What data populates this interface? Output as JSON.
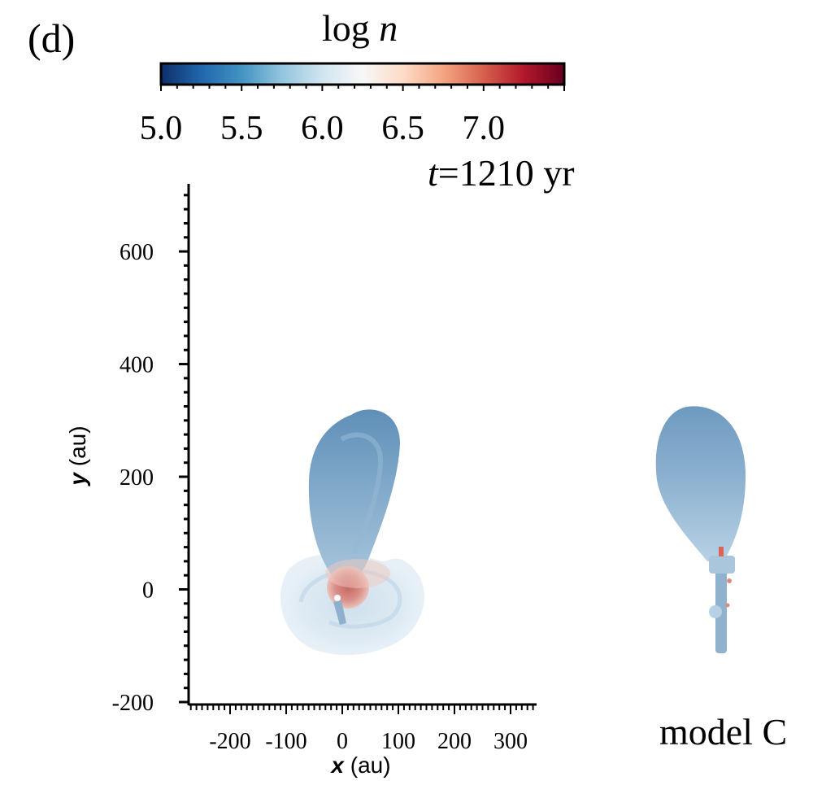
{
  "panel_label": "(d)",
  "colorbar": {
    "title_prefix": "log ",
    "title_var": "n",
    "min": 5.0,
    "max": 7.5,
    "tick_labels": [
      "5.0",
      "5.5",
      "6.0",
      "6.5",
      "7.0"
    ],
    "tick_values": [
      5.0,
      5.5,
      6.0,
      6.5,
      7.0
    ],
    "colormap": "RdBu_r",
    "colors": [
      "#0d2f6b",
      "#2166ac",
      "#4393c3",
      "#92c5de",
      "#d1e5f0",
      "#f7f7f7",
      "#fddbc7",
      "#f4a582",
      "#d6604d",
      "#b2182b",
      "#67001f"
    ]
  },
  "time_label": {
    "var": "t",
    "text": "=1210 yr"
  },
  "model_label": "model C",
  "chart_data": {
    "type": "heatmap",
    "title": "",
    "xlabel_var": "x",
    "xlabel_unit": " (au)",
    "ylabel_var": "y",
    "ylabel_unit": " (au)",
    "xlim": [
      -280,
      350
    ],
    "ylim": [
      -200,
      720
    ],
    "x_ticks": [
      -200,
      -100,
      0,
      100,
      200,
      300
    ],
    "x_tick_labels": [
      "-200",
      "-100",
      "0",
      "100",
      "200",
      "300"
    ],
    "y_ticks": [
      -200,
      0,
      200,
      400,
      600
    ],
    "y_tick_labels": [
      "-200",
      "0",
      "200",
      "400",
      "600"
    ],
    "structures": [
      {
        "name": "outflow lobe",
        "center": [
          30,
          180
        ],
        "extent_x": [
          -60,
          100
        ],
        "extent_y": [
          -40,
          320
        ],
        "log_n": 5.5
      },
      {
        "name": "disk envelope",
        "center": [
          0,
          0
        ],
        "radius": 110,
        "log_n": 6.0
      },
      {
        "name": "dense core",
        "center": [
          15,
          5
        ],
        "radius": 30,
        "log_n": 6.7
      }
    ]
  }
}
